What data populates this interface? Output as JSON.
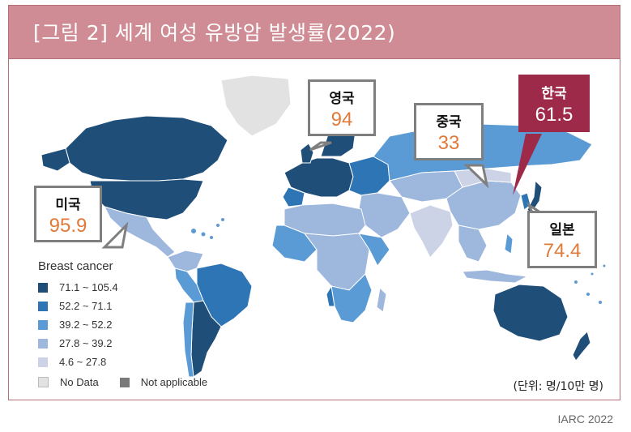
{
  "title": "[그림 2] 세계 여성 유방암 발생률(2022)",
  "legend": {
    "title": "Breast cancer",
    "items": [
      {
        "label": "71.1 ~ 105.4",
        "color": "#1f4e79"
      },
      {
        "label": "52.2 ~ 71.1",
        "color": "#2e75b6"
      },
      {
        "label": "39.2 ~ 52.2",
        "color": "#5b9bd5"
      },
      {
        "label": "27.8 ~ 39.2",
        "color": "#9db7dd"
      },
      {
        "label": "4.6 ~ 27.8",
        "color": "#cdd3e6"
      }
    ],
    "no_data": {
      "label": "No Data",
      "color": "#e2e2e2"
    },
    "not_applicable": {
      "label": "Not applicable",
      "color": "#7a7a7a"
    }
  },
  "callouts": {
    "usa": {
      "name": "미국",
      "value": "95.9"
    },
    "uk": {
      "name": "영국",
      "value": "94"
    },
    "china": {
      "name": "중국",
      "value": "33"
    },
    "korea": {
      "name": "한국",
      "value": "61.5"
    },
    "japan": {
      "name": "일본",
      "value": "74.4"
    }
  },
  "unit": "(단위: 명/10만 명)",
  "source": "IARC 2022"
}
